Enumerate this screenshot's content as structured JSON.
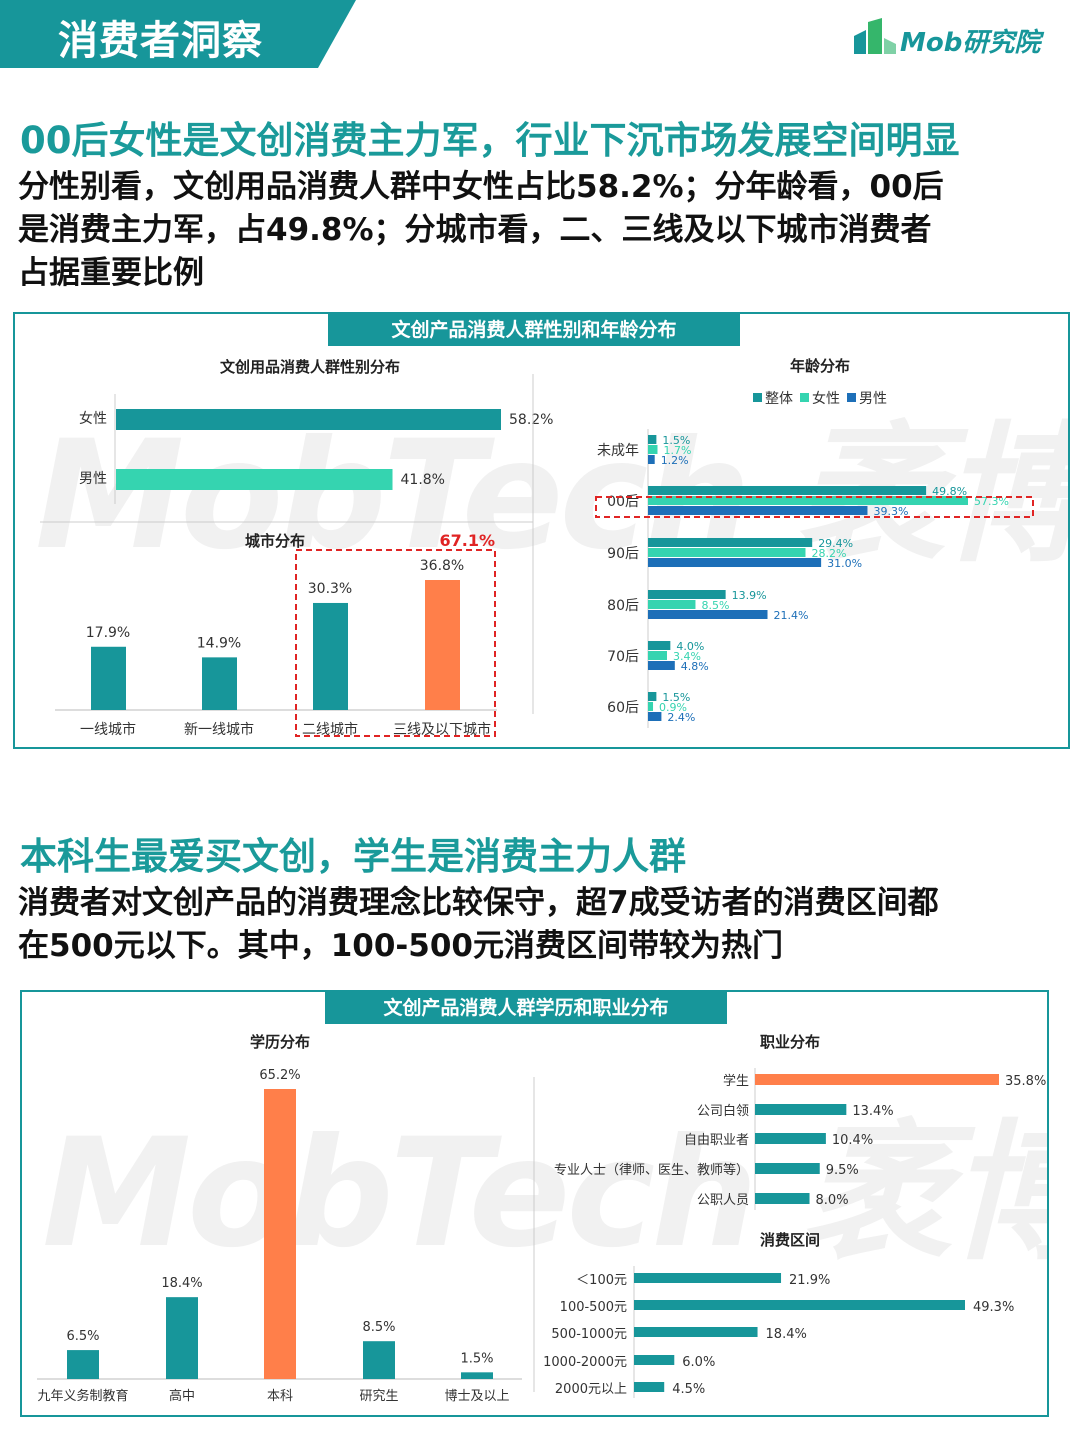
{
  "header": {
    "section_label": "消费者洞察",
    "logo_text": "Mob研究院"
  },
  "colors": {
    "teal": "#17969a",
    "mint": "#35d4b0",
    "blue": "#1d6fb8",
    "orange": "#ff7f4a",
    "red": "#e02424",
    "headline": "#1a9a9a"
  },
  "section1": {
    "headline": "00后女性是文创消费主力军，行业下沉市场发展空间明显",
    "body_lines": [
      "分性别看，文创用品消费人群中女性占比58.2%；分年龄看，00后",
      "是消费主力军，占49.8%；分城市看，二、三线及以下城市消费者",
      "占据重要比例"
    ],
    "panel_title": "文创产品消费人群性别和年龄分布"
  },
  "section2": {
    "headline": "本科生最爱买文创，学生是消费主力人群",
    "body_lines": [
      "消费者对文创产品的消费理念比较保守，超7成受访者的消费区间都",
      "在500元以下。其中，100-500元消费区间带较为热门"
    ],
    "panel_title": "文创产品消费人群学历和职业分布"
  },
  "watermark": "MobTech 袤博",
  "chart_data": [
    {
      "id": "gender",
      "type": "bar",
      "orientation": "horizontal",
      "title": "文创用品消费人群性别分布",
      "categories": [
        "女性",
        "男性"
      ],
      "values": [
        58.2,
        41.8
      ],
      "labels": [
        "58.2%",
        "41.8%"
      ]
    },
    {
      "id": "city",
      "type": "bar",
      "title": "城市分布",
      "categories": [
        "一线城市",
        "新一线城市",
        "二线城市",
        "三线及以下城市"
      ],
      "values": [
        17.9,
        14.9,
        30.3,
        36.8
      ],
      "labels": [
        "17.9%",
        "14.9%",
        "30.3%",
        "36.8%"
      ],
      "highlight_label": "67.1%"
    },
    {
      "id": "age",
      "type": "bar",
      "orientation": "horizontal",
      "title": "年龄分布",
      "categories": [
        "未成年",
        "00后",
        "90后",
        "80后",
        "70后",
        "60后"
      ],
      "series": [
        {
          "name": "整体",
          "values": [
            1.5,
            49.8,
            29.4,
            13.9,
            4.0,
            1.5
          ],
          "labels": [
            "1.5%",
            "49.8%",
            "29.4%",
            "13.9%",
            "4.0%",
            "1.5%"
          ]
        },
        {
          "name": "女性",
          "values": [
            1.7,
            57.3,
            28.2,
            8.5,
            3.4,
            0.9
          ],
          "labels": [
            "1.7%",
            "57.3%",
            "28.2%",
            "8.5%",
            "3.4%",
            "0.9%"
          ]
        },
        {
          "name": "男性",
          "values": [
            1.2,
            39.3,
            31.0,
            21.4,
            4.8,
            2.4
          ],
          "labels": [
            "1.2%",
            "39.3%",
            "31.0%",
            "21.4%",
            "4.8%",
            "2.4%"
          ]
        }
      ]
    },
    {
      "id": "education",
      "type": "bar",
      "title": "学历分布",
      "categories": [
        "九年义务制教育",
        "高中",
        "本科",
        "研究生",
        "博士及以上"
      ],
      "values": [
        6.5,
        18.4,
        65.2,
        8.5,
        1.5
      ],
      "labels": [
        "6.5%",
        "18.4%",
        "65.2%",
        "8.5%",
        "1.5%"
      ]
    },
    {
      "id": "occupation",
      "type": "bar",
      "orientation": "horizontal",
      "title": "职业分布",
      "categories": [
        "学生",
        "公司白领",
        "自由职业者",
        "专业人士（律师、医生、教师等）",
        "公职人员"
      ],
      "values": [
        35.8,
        13.4,
        10.4,
        9.5,
        8.0
      ],
      "labels": [
        "35.8%",
        "13.4%",
        "10.4%",
        "9.5%",
        "8.0%"
      ]
    },
    {
      "id": "spending",
      "type": "bar",
      "orientation": "horizontal",
      "title": "消费区间",
      "categories": [
        "＜100元",
        "100-500元",
        "500-1000元",
        "1000-2000元",
        "2000元以上"
      ],
      "values": [
        21.9,
        49.3,
        18.4,
        6.0,
        4.5
      ],
      "labels": [
        "21.9%",
        "49.3%",
        "18.4%",
        "6.0%",
        "4.5%"
      ]
    }
  ]
}
